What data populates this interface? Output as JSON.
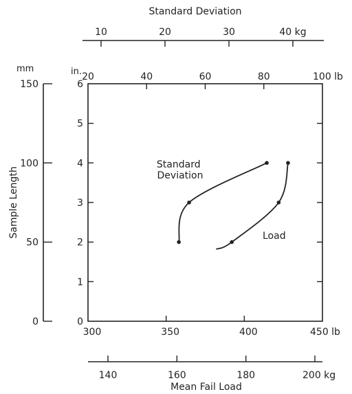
{
  "chart_data": {
    "type": "line",
    "title": "",
    "axes": {
      "top_std_kg": {
        "label": "Standard Deviation",
        "range": [
          10,
          40
        ],
        "ticks": [
          "10",
          "20",
          "30",
          "40 kg"
        ]
      },
      "top_lb": {
        "label": "",
        "range": [
          20,
          100
        ],
        "ticks": [
          "20",
          "40",
          "60",
          "80",
          "100 lb"
        ]
      },
      "bottom_lb": {
        "label": "",
        "range": [
          300,
          450
        ],
        "ticks": [
          "300",
          "350",
          "400",
          "450 lb"
        ]
      },
      "bottom_kg": {
        "label": "Mean Fail Load",
        "range": [
          140,
          200
        ],
        "ticks": [
          "140",
          "160",
          "180",
          "200 kg"
        ]
      },
      "left_in": {
        "label": "",
        "unit": "in.",
        "range": [
          0,
          6
        ],
        "ticks": [
          "0",
          "1",
          "2",
          "3",
          "4",
          "5",
          "6"
        ]
      },
      "left_mm": {
        "label": "Sample Length",
        "unit": "mm",
        "range": [
          0,
          150
        ],
        "ticks": [
          "0",
          "50",
          "100",
          "150"
        ]
      }
    },
    "series": [
      {
        "name": "Standard Deviation",
        "x_axis": "top_lb",
        "y_axis": "left_in",
        "points": [
          {
            "x": 51,
            "y": 2
          },
          {
            "x": 54.5,
            "y": 3
          },
          {
            "x": 81,
            "y": 4
          }
        ]
      },
      {
        "name": "Load",
        "x_axis": "bottom_lb",
        "y_axis": "left_in",
        "points": [
          {
            "x": 392,
            "y": 2
          },
          {
            "x": 422,
            "y": 3
          },
          {
            "x": 428,
            "y": 4
          }
        ],
        "curve_start": {
          "x": 382,
          "y": 1.82
        }
      }
    ]
  }
}
